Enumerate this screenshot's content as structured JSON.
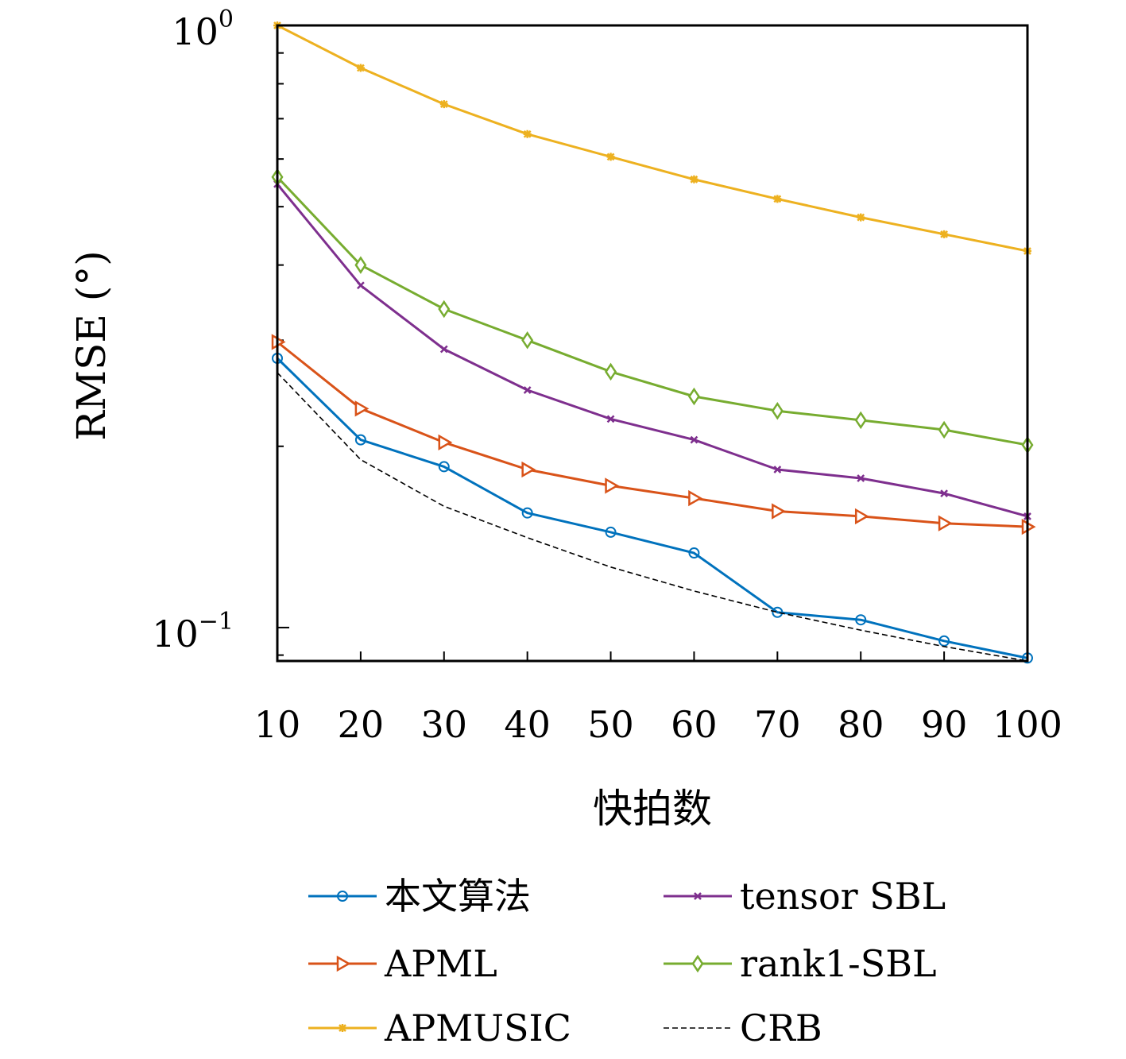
{
  "chart_data": {
    "type": "line",
    "xlabel": "快拍数",
    "ylabel": "RMSE (°)",
    "yscale": "log",
    "xlim": [
      10,
      100
    ],
    "ylim": [
      0.088,
      1.0
    ],
    "x": [
      10,
      20,
      30,
      40,
      50,
      60,
      70,
      80,
      90,
      100
    ],
    "xticks": [
      "10",
      "20",
      "30",
      "40",
      "50",
      "60",
      "70",
      "80",
      "90",
      "100"
    ],
    "yticks": [
      {
        "value": 1.0,
        "base": "10",
        "exp": "0"
      },
      {
        "value": 0.1,
        "base": "10",
        "exp": "−1"
      }
    ],
    "legend_position": "bottom",
    "series": [
      {
        "name": "本文算法",
        "color": "#0072BD",
        "marker": "circle",
        "dashed": false,
        "values": [
          0.28,
          0.205,
          0.185,
          0.155,
          0.144,
          0.133,
          0.106,
          0.103,
          0.095,
          0.089
        ]
      },
      {
        "name": "tensor SBL",
        "color": "#7E2F8E",
        "marker": "x",
        "dashed": false,
        "values": [
          0.545,
          0.37,
          0.29,
          0.248,
          0.222,
          0.205,
          0.183,
          0.177,
          0.167,
          0.153
        ]
      },
      {
        "name": "APML",
        "color": "#D95319",
        "marker": "triangle-right",
        "dashed": false,
        "values": [
          0.298,
          0.231,
          0.203,
          0.183,
          0.172,
          0.164,
          0.156,
          0.153,
          0.149,
          0.147
        ]
      },
      {
        "name": "rank1-SBL",
        "color": "#77AC30",
        "marker": "diamond",
        "dashed": false,
        "values": [
          0.56,
          0.4,
          0.338,
          0.3,
          0.266,
          0.242,
          0.229,
          0.221,
          0.213,
          0.201
        ]
      },
      {
        "name": "APMUSIC",
        "color": "#EDB120",
        "marker": "asterisk",
        "dashed": false,
        "values": [
          1.0,
          0.85,
          0.74,
          0.66,
          0.605,
          0.555,
          0.515,
          0.48,
          0.45,
          0.422
        ]
      },
      {
        "name": "CRB",
        "color": "#000000",
        "marker": "none",
        "dashed": true,
        "values": [
          0.265,
          0.19,
          0.159,
          0.141,
          0.126,
          0.115,
          0.106,
          0.099,
          0.093,
          0.088
        ]
      }
    ]
  }
}
